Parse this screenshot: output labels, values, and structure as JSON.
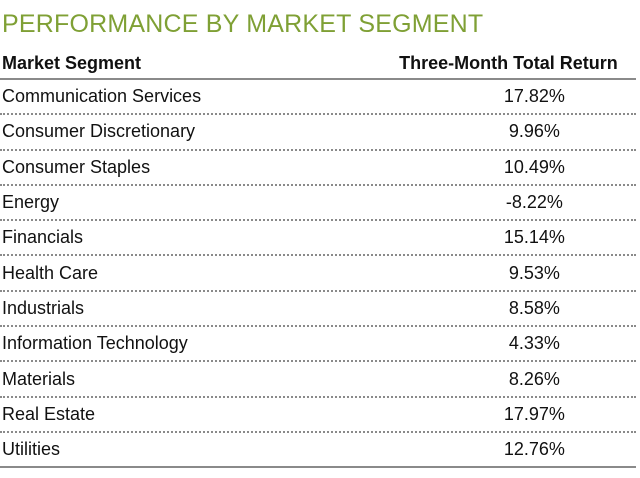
{
  "title": "PERFORMANCE BY MARKET SEGMENT",
  "colors": {
    "title": "#7fa035",
    "rule": "#8a8a8a",
    "text": "#111111"
  },
  "table": {
    "headers": {
      "segment": "Market Segment",
      "return": "Three-Month Total Return"
    },
    "rows": [
      {
        "segment": "Communication Services",
        "return": "17.82%"
      },
      {
        "segment": "Consumer Discretionary",
        "return": "9.96%"
      },
      {
        "segment": "Consumer Staples",
        "return": "10.49%"
      },
      {
        "segment": "Energy",
        "return": "-8.22%"
      },
      {
        "segment": "Financials",
        "return": "15.14%"
      },
      {
        "segment": "Health Care",
        "return": "9.53%"
      },
      {
        "segment": "Industrials",
        "return": "8.58%"
      },
      {
        "segment": "Information Technology",
        "return": "4.33%"
      },
      {
        "segment": "Materials",
        "return": "8.26%"
      },
      {
        "segment": "Real Estate",
        "return": "17.97%"
      },
      {
        "segment": "Utilities",
        "return": "12.76%"
      }
    ]
  }
}
